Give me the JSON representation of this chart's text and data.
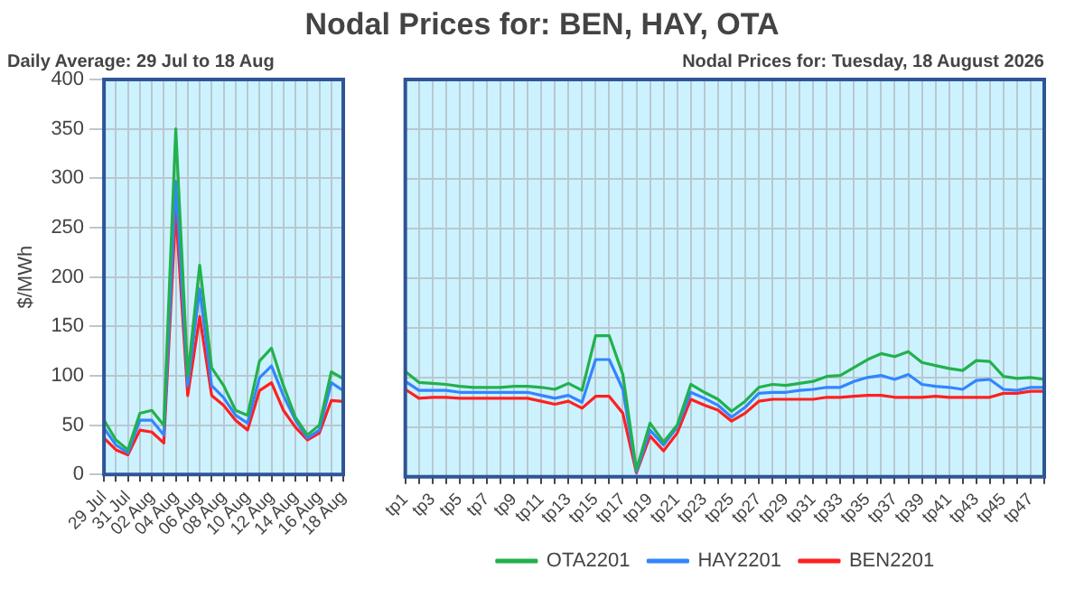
{
  "chart_data": [
    {
      "type": "line",
      "subtitle": "Daily Average: 29 Jul to 18 Aug",
      "ylabel": "$/MWh",
      "categories": [
        "29 Jul",
        null,
        "31 Jul",
        null,
        "02 Aug",
        null,
        "04 Aug",
        null,
        "06 Aug",
        null,
        "08 Aug",
        null,
        "10 Aug",
        null,
        "12 Aug",
        null,
        "14 Aug",
        null,
        "16 Aug",
        null,
        "18 Aug"
      ],
      "series": [
        {
          "color": "#22b14c",
          "values": [
            55,
            35,
            25,
            62,
            65,
            50,
            350,
            100,
            212,
            108,
            90,
            65,
            60,
            115,
            128,
            90,
            58,
            40,
            50,
            104,
            97
          ]
        },
        {
          "color": "#3385ff",
          "values": [
            47,
            30,
            22,
            55,
            55,
            40,
            297,
            90,
            188,
            90,
            78,
            60,
            52,
            98,
            110,
            80,
            55,
            37,
            45,
            93,
            85
          ]
        },
        {
          "color": "#ff2020",
          "values": [
            37,
            25,
            20,
            45,
            43,
            32,
            268,
            80,
            160,
            80,
            70,
            55,
            45,
            85,
            93,
            65,
            48,
            35,
            42,
            75,
            74
          ]
        }
      ],
      "ylim": [
        0,
        400
      ],
      "yticks": [
        0,
        50,
        100,
        150,
        200,
        250,
        300,
        350,
        400
      ],
      "grid": true,
      "marker": "none",
      "line_style": "solid"
    },
    {
      "type": "line",
      "title": "Nodal Prices for: BEN, HAY, OTA",
      "subtitle": "Nodal Prices for: Tuesday, 18 August 2026",
      "categories": [
        "tp1",
        null,
        "tp3",
        null,
        "tp5",
        null,
        "tp7",
        null,
        "tp9",
        null,
        "tp11",
        null,
        "tp13",
        null,
        "tp15",
        null,
        "tp17",
        null,
        "tp19",
        null,
        "tp21",
        null,
        "tp23",
        null,
        "tp25",
        null,
        "tp27",
        null,
        "tp29",
        null,
        "tp31",
        null,
        "tp33",
        null,
        "tp35",
        null,
        "tp37",
        null,
        "tp39",
        null,
        "tp41",
        null,
        "tp43",
        null,
        "tp45",
        null,
        "tp47",
        null
      ],
      "series": [
        {
          "name": "OTA2201",
          "color": "#22b14c",
          "values": [
            106,
            95,
            94,
            93,
            91,
            90,
            90,
            90,
            91,
            91,
            90,
            88,
            94,
            87,
            142,
            142,
            103,
            7,
            54,
            35,
            52,
            93,
            85,
            78,
            66,
            76,
            90,
            93,
            92,
            94,
            96,
            101,
            102,
            110,
            118,
            124,
            121,
            126,
            115,
            112,
            109,
            107,
            117,
            116,
            101,
            99,
            100,
            98
          ]
        },
        {
          "name": "HAY2201",
          "color": "#3385ff",
          "values": [
            96,
            87,
            87,
            87,
            85,
            85,
            85,
            85,
            85,
            85,
            82,
            79,
            82,
            75,
            118,
            118,
            88,
            5,
            47,
            32,
            50,
            85,
            79,
            72,
            60,
            70,
            84,
            85,
            85,
            87,
            88,
            90,
            90,
            96,
            100,
            102,
            98,
            103,
            93,
            91,
            90,
            88,
            97,
            98,
            88,
            87,
            90,
            90
          ]
        },
        {
          "name": "BEN2201",
          "color": "#ff2020",
          "values": [
            88,
            79,
            80,
            80,
            79,
            79,
            79,
            79,
            79,
            79,
            76,
            73,
            76,
            69,
            81,
            81,
            64,
            4,
            41,
            26,
            44,
            78,
            72,
            67,
            56,
            64,
            76,
            78,
            78,
            78,
            78,
            80,
            80,
            81,
            82,
            82,
            80,
            80,
            80,
            81,
            80,
            80,
            80,
            80,
            84,
            84,
            86,
            86
          ]
        }
      ],
      "ylim": [
        0,
        400
      ],
      "yticks": [
        0,
        50,
        100,
        150,
        200,
        250,
        300,
        350,
        400
      ],
      "tick_labels": "x",
      "grid": true,
      "legend": "bottom",
      "marker": "none",
      "line_style": "solid"
    }
  ]
}
